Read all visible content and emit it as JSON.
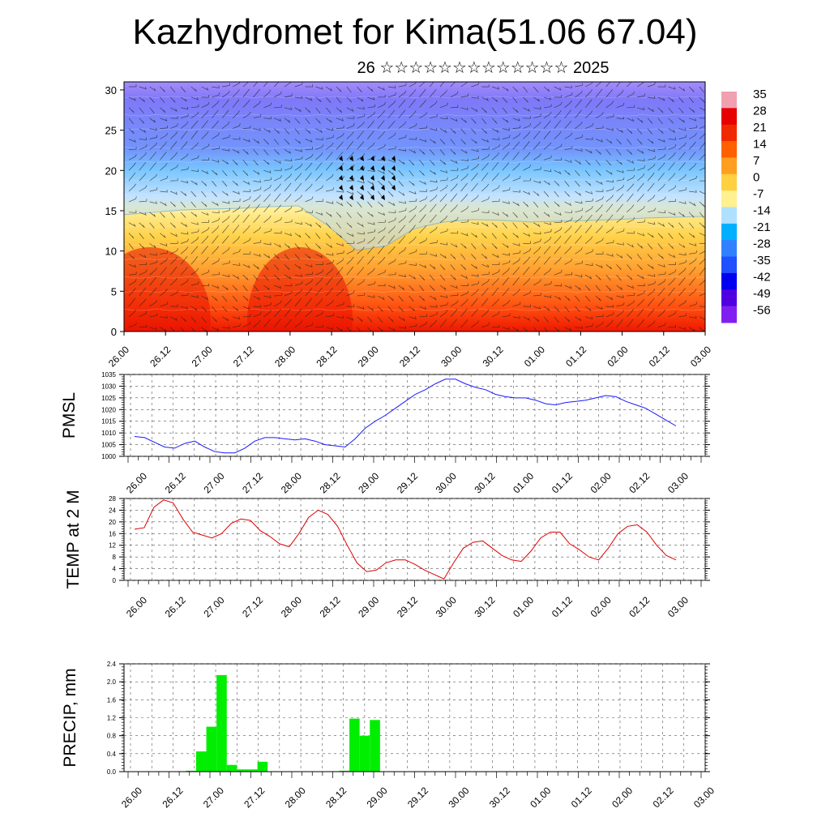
{
  "title": "Kazhydromet for Kima(51.06 67.04)",
  "subtitle": "26 ☆☆☆☆☆☆☆☆☆☆☆☆☆ 2025",
  "time_labels": [
    "26.00",
    "26.12",
    "27.00",
    "27.12",
    "28.00",
    "28.12",
    "29.00",
    "29.12",
    "30.00",
    "30.12",
    "01.00",
    "01.12",
    "02.00",
    "02.12",
    "03.00"
  ],
  "chart_data": [
    {
      "type": "heatmap",
      "ylim": [
        0,
        31
      ],
      "y_ticks": [
        0,
        5,
        10,
        15,
        20,
        25,
        30
      ],
      "colorbar": {
        "labels": [
          "35",
          "28",
          "21",
          "14",
          "7",
          "0",
          "-7",
          "-14",
          "-21",
          "-28",
          "-35",
          "-42",
          "-49",
          "-56"
        ],
        "colors": [
          "#f0a0b0",
          "#e60000",
          "#f02a00",
          "#ff6000",
          "#ff9f20",
          "#ffd040",
          "#fff090",
          "#b0e0ff",
          "#00b0ff",
          "#3080ff",
          "#2050ff",
          "#0000f0",
          "#5000e0",
          "#8020f0"
        ]
      },
      "freezing_level": [
        14.5,
        14.8,
        15.1,
        15.2,
        15.3,
        15.5,
        15.6,
        13.2,
        10.1,
        10.6,
        12.8,
        13.6,
        13.9,
        13.8,
        13.6,
        13.7,
        13.8,
        13.9,
        14.1,
        14.2,
        14.3
      ]
    },
    {
      "type": "line",
      "ylabel": "PMSL",
      "ylim": [
        1000,
        1035
      ],
      "y_ticks": [
        "1000",
        "1005",
        "1010",
        "1015",
        "1020",
        "1025",
        "1030",
        "1035"
      ],
      "color": "#1a1aff",
      "values": [
        1008.5,
        1008,
        1006,
        1004,
        1003.5,
        1005.5,
        1006.5,
        1004,
        1002,
        1001.5,
        1001.5,
        1003.5,
        1006.5,
        1008,
        1008,
        1007.5,
        1007,
        1007.5,
        1006.5,
        1005,
        1004.5,
        1004,
        1007.5,
        1012,
        1015,
        1017.5,
        1020.5,
        1023.5,
        1026.5,
        1028.5,
        1031,
        1033,
        1033,
        1031,
        1029.5,
        1028.5,
        1026.5,
        1025.5,
        1025,
        1025,
        1024,
        1022.5,
        1022,
        1023,
        1023.5,
        1024,
        1025,
        1026,
        1025.5,
        1023.5,
        1022,
        1020.5,
        1018,
        1015.5,
        1013
      ]
    },
    {
      "type": "line",
      "ylabel": "TEMP at 2 M",
      "ylim": [
        0,
        28
      ],
      "y_ticks": [
        "0",
        "4",
        "8",
        "12",
        "16",
        "20",
        "24",
        "28"
      ],
      "color": "#dd0000",
      "values": [
        17.5,
        18,
        25,
        27.5,
        26.5,
        21,
        16.5,
        15.5,
        14.5,
        16,
        19.5,
        21,
        20.5,
        17,
        15,
        12.5,
        11.5,
        16,
        21.5,
        24,
        22.5,
        18.5,
        12,
        6,
        3,
        3.5,
        6,
        7,
        7,
        5.5,
        3.5,
        2,
        0.5,
        6,
        11,
        13,
        13.5,
        11,
        8.5,
        7,
        6.5,
        10,
        14.5,
        16.5,
        16.5,
        12.5,
        10.5,
        8,
        7,
        11,
        16,
        18.5,
        19,
        16.5,
        12,
        8.5,
        7
      ]
    },
    {
      "type": "bar",
      "ylabel": "PRECIP, mm",
      "ylim": [
        0,
        2.4
      ],
      "y_ticks": [
        "0.0",
        "0.4",
        "0.8",
        "1.2",
        "1.6",
        "2.0",
        "2.4"
      ],
      "color": "#00ee00",
      "values": [
        0,
        0,
        0,
        0,
        0,
        0,
        0.02,
        0.45,
        1.0,
        2.15,
        0.15,
        0.05,
        0.05,
        0.22,
        0,
        0,
        0,
        0,
        0,
        0,
        0.01,
        0.02,
        1.18,
        0.8,
        1.15,
        0,
        0,
        0,
        0,
        0,
        0,
        0,
        0,
        0,
        0,
        0,
        0,
        0,
        0,
        0,
        0,
        0,
        0,
        0,
        0,
        0,
        0,
        0,
        0,
        0,
        0,
        0,
        0,
        0,
        0,
        0,
        0
      ]
    }
  ]
}
